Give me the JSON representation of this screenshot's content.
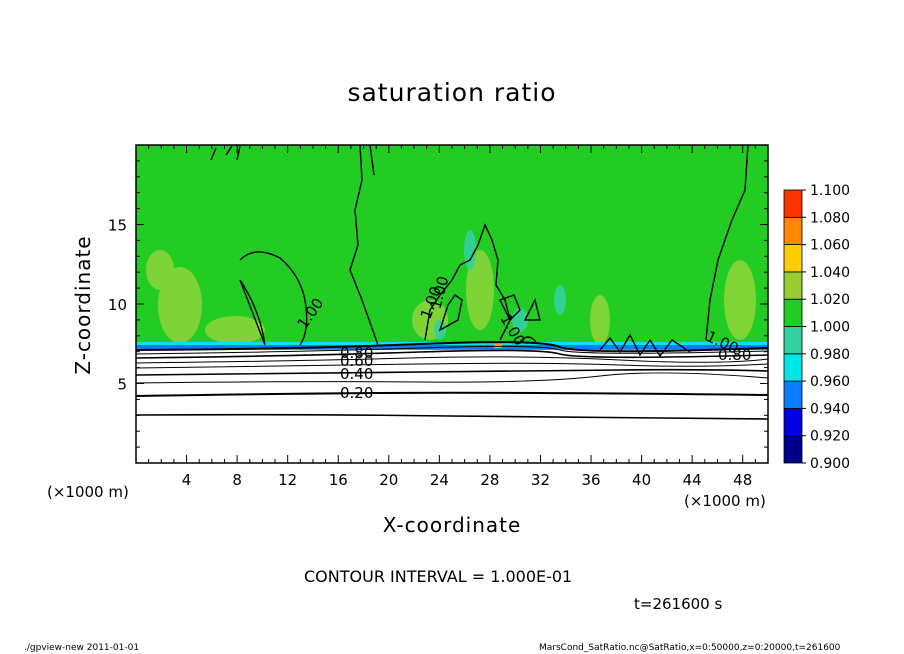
{
  "chart_data": {
    "type": "heatmap",
    "title": "saturation ratio",
    "xlabel": "X-coordinate",
    "ylabel": "Z-coordinate",
    "x_unit": "(×1000 m)",
    "xlim": [
      0,
      50
    ],
    "ylim": [
      0,
      20
    ],
    "x_ticks": [
      "4",
      "8",
      "12",
      "16",
      "20",
      "24",
      "28",
      "32",
      "36",
      "40",
      "44",
      "48"
    ],
    "y_ticks": [
      "5",
      "10",
      "15"
    ],
    "colorbar": {
      "levels": [
        "0.900",
        "0.920",
        "0.940",
        "0.960",
        "0.980",
        "1.000",
        "1.020",
        "1.040",
        "1.060",
        "1.080",
        "1.100"
      ],
      "colors": [
        "#6a0dad",
        "#00008b",
        "#0000e0",
        "#0a7cff",
        "#00e5e5",
        "#33d1a0",
        "#22cc22",
        "#9acd32",
        "#ffcc00",
        "#ff8800",
        "#ff3300",
        "#ff9999"
      ]
    },
    "contour_labels": [
      "0.20",
      "0.40",
      "0.60",
      "0.80",
      "1.00",
      "1.00",
      "1.00",
      "1.00",
      "1.00",
      "0.80"
    ],
    "contour_interval": "CONTOUR INTERVAL = 1.000E-01",
    "time": "t=261600 s"
  },
  "footer": {
    "left": "./gpview-new   2011-01-01",
    "right": "MarsCond_SatRatio.nc@SatRatio,x=0:50000,z=0:20000,t=261600"
  }
}
